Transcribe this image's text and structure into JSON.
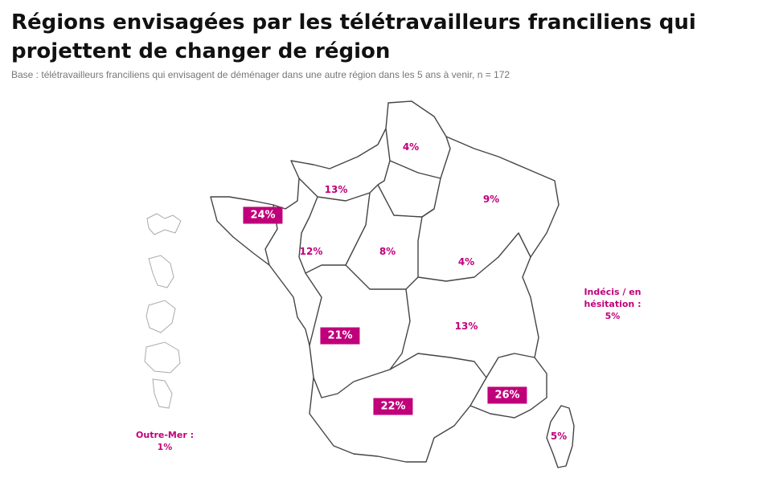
{
  "header": {
    "title": "Régions envisagées par les télétravailleurs franciliens qui projettent de changer de région",
    "subtitle": "Base : télétravailleurs franciliens qui envisagent de déménager dans une autre région dans les 5 ans à venir, n = 172"
  },
  "colors": {
    "accent": "#c0007a",
    "outline": "#444444"
  },
  "regions": [
    {
      "id": "hauts-de-france",
      "value": "4%",
      "highlight": false
    },
    {
      "id": "normandie",
      "value": "13%",
      "highlight": false
    },
    {
      "id": "grand-est",
      "value": "9%",
      "highlight": false
    },
    {
      "id": "bretagne",
      "value": "24%",
      "highlight": true
    },
    {
      "id": "pays-de-la-loire",
      "value": "12%",
      "highlight": false
    },
    {
      "id": "centre-val-de-loire",
      "value": "8%",
      "highlight": false
    },
    {
      "id": "bourgogne-franche-comte",
      "value": "4%",
      "highlight": false
    },
    {
      "id": "nouvelle-aquitaine",
      "value": "21%",
      "highlight": true
    },
    {
      "id": "auvergne-rhone-alpes",
      "value": "13%",
      "highlight": false
    },
    {
      "id": "occitanie",
      "value": "22%",
      "highlight": true
    },
    {
      "id": "provence-alpes-cote-d-azur",
      "value": "26%",
      "highlight": true
    },
    {
      "id": "corse",
      "value": "5%",
      "highlight": false
    }
  ],
  "undecided": {
    "line1": "Indécis / en",
    "line2": "hésitation :",
    "value": "5%"
  },
  "outre_mer": {
    "line1": "Outre-Mer :",
    "value": "1%"
  }
}
